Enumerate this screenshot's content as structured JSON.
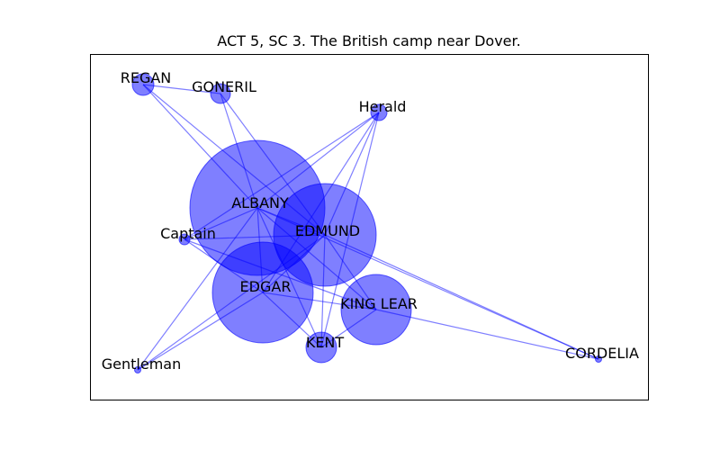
{
  "title": "ACT 5, SC 3. The British camp near Dover.",
  "colors": {
    "node": "#0000ff",
    "edge": "#0000ff",
    "frame": "#000000",
    "background": "#ffffff"
  },
  "nodes": [
    {
      "id": "REGAN",
      "label": "REGAN"
    },
    {
      "id": "GONERIL",
      "label": "GONERIL"
    },
    {
      "id": "Herald",
      "label": "Herald"
    },
    {
      "id": "ALBANY",
      "label": "ALBANY"
    },
    {
      "id": "EDMUND",
      "label": "EDMUND"
    },
    {
      "id": "Captain",
      "label": "Captain"
    },
    {
      "id": "EDGAR",
      "label": "EDGAR"
    },
    {
      "id": "KING LEAR",
      "label": "KING LEAR"
    },
    {
      "id": "KENT",
      "label": "KENT"
    },
    {
      "id": "Gentleman",
      "label": "Gentleman"
    },
    {
      "id": "CORDELIA",
      "label": "CORDELIA"
    }
  ],
  "edges": [
    [
      "REGAN",
      "GONERIL"
    ],
    [
      "REGAN",
      "ALBANY"
    ],
    [
      "REGAN",
      "EDMUND"
    ],
    [
      "GONERIL",
      "ALBANY"
    ],
    [
      "GONERIL",
      "EDMUND"
    ],
    [
      "Herald",
      "ALBANY"
    ],
    [
      "Herald",
      "EDMUND"
    ],
    [
      "Herald",
      "EDGAR"
    ],
    [
      "Herald",
      "Captain"
    ],
    [
      "Herald",
      "KENT"
    ],
    [
      "ALBANY",
      "EDMUND"
    ],
    [
      "ALBANY",
      "EDGAR"
    ],
    [
      "ALBANY",
      "Captain"
    ],
    [
      "ALBANY",
      "KENT"
    ],
    [
      "ALBANY",
      "KING LEAR"
    ],
    [
      "ALBANY",
      "Gentleman"
    ],
    [
      "ALBANY",
      "CORDELIA"
    ],
    [
      "EDMUND",
      "EDGAR"
    ],
    [
      "EDMUND",
      "Captain"
    ],
    [
      "EDMUND",
      "KENT"
    ],
    [
      "EDMUND",
      "KING LEAR"
    ],
    [
      "EDMUND",
      "Gentleman"
    ],
    [
      "EDMUND",
      "CORDELIA"
    ],
    [
      "EDGAR",
      "KENT"
    ],
    [
      "EDGAR",
      "KING LEAR"
    ],
    [
      "EDGAR",
      "Gentleman"
    ],
    [
      "EDGAR",
      "Captain"
    ],
    [
      "Captain",
      "KING LEAR"
    ],
    [
      "KENT",
      "KING LEAR"
    ],
    [
      "KING LEAR",
      "CORDELIA"
    ]
  ]
}
